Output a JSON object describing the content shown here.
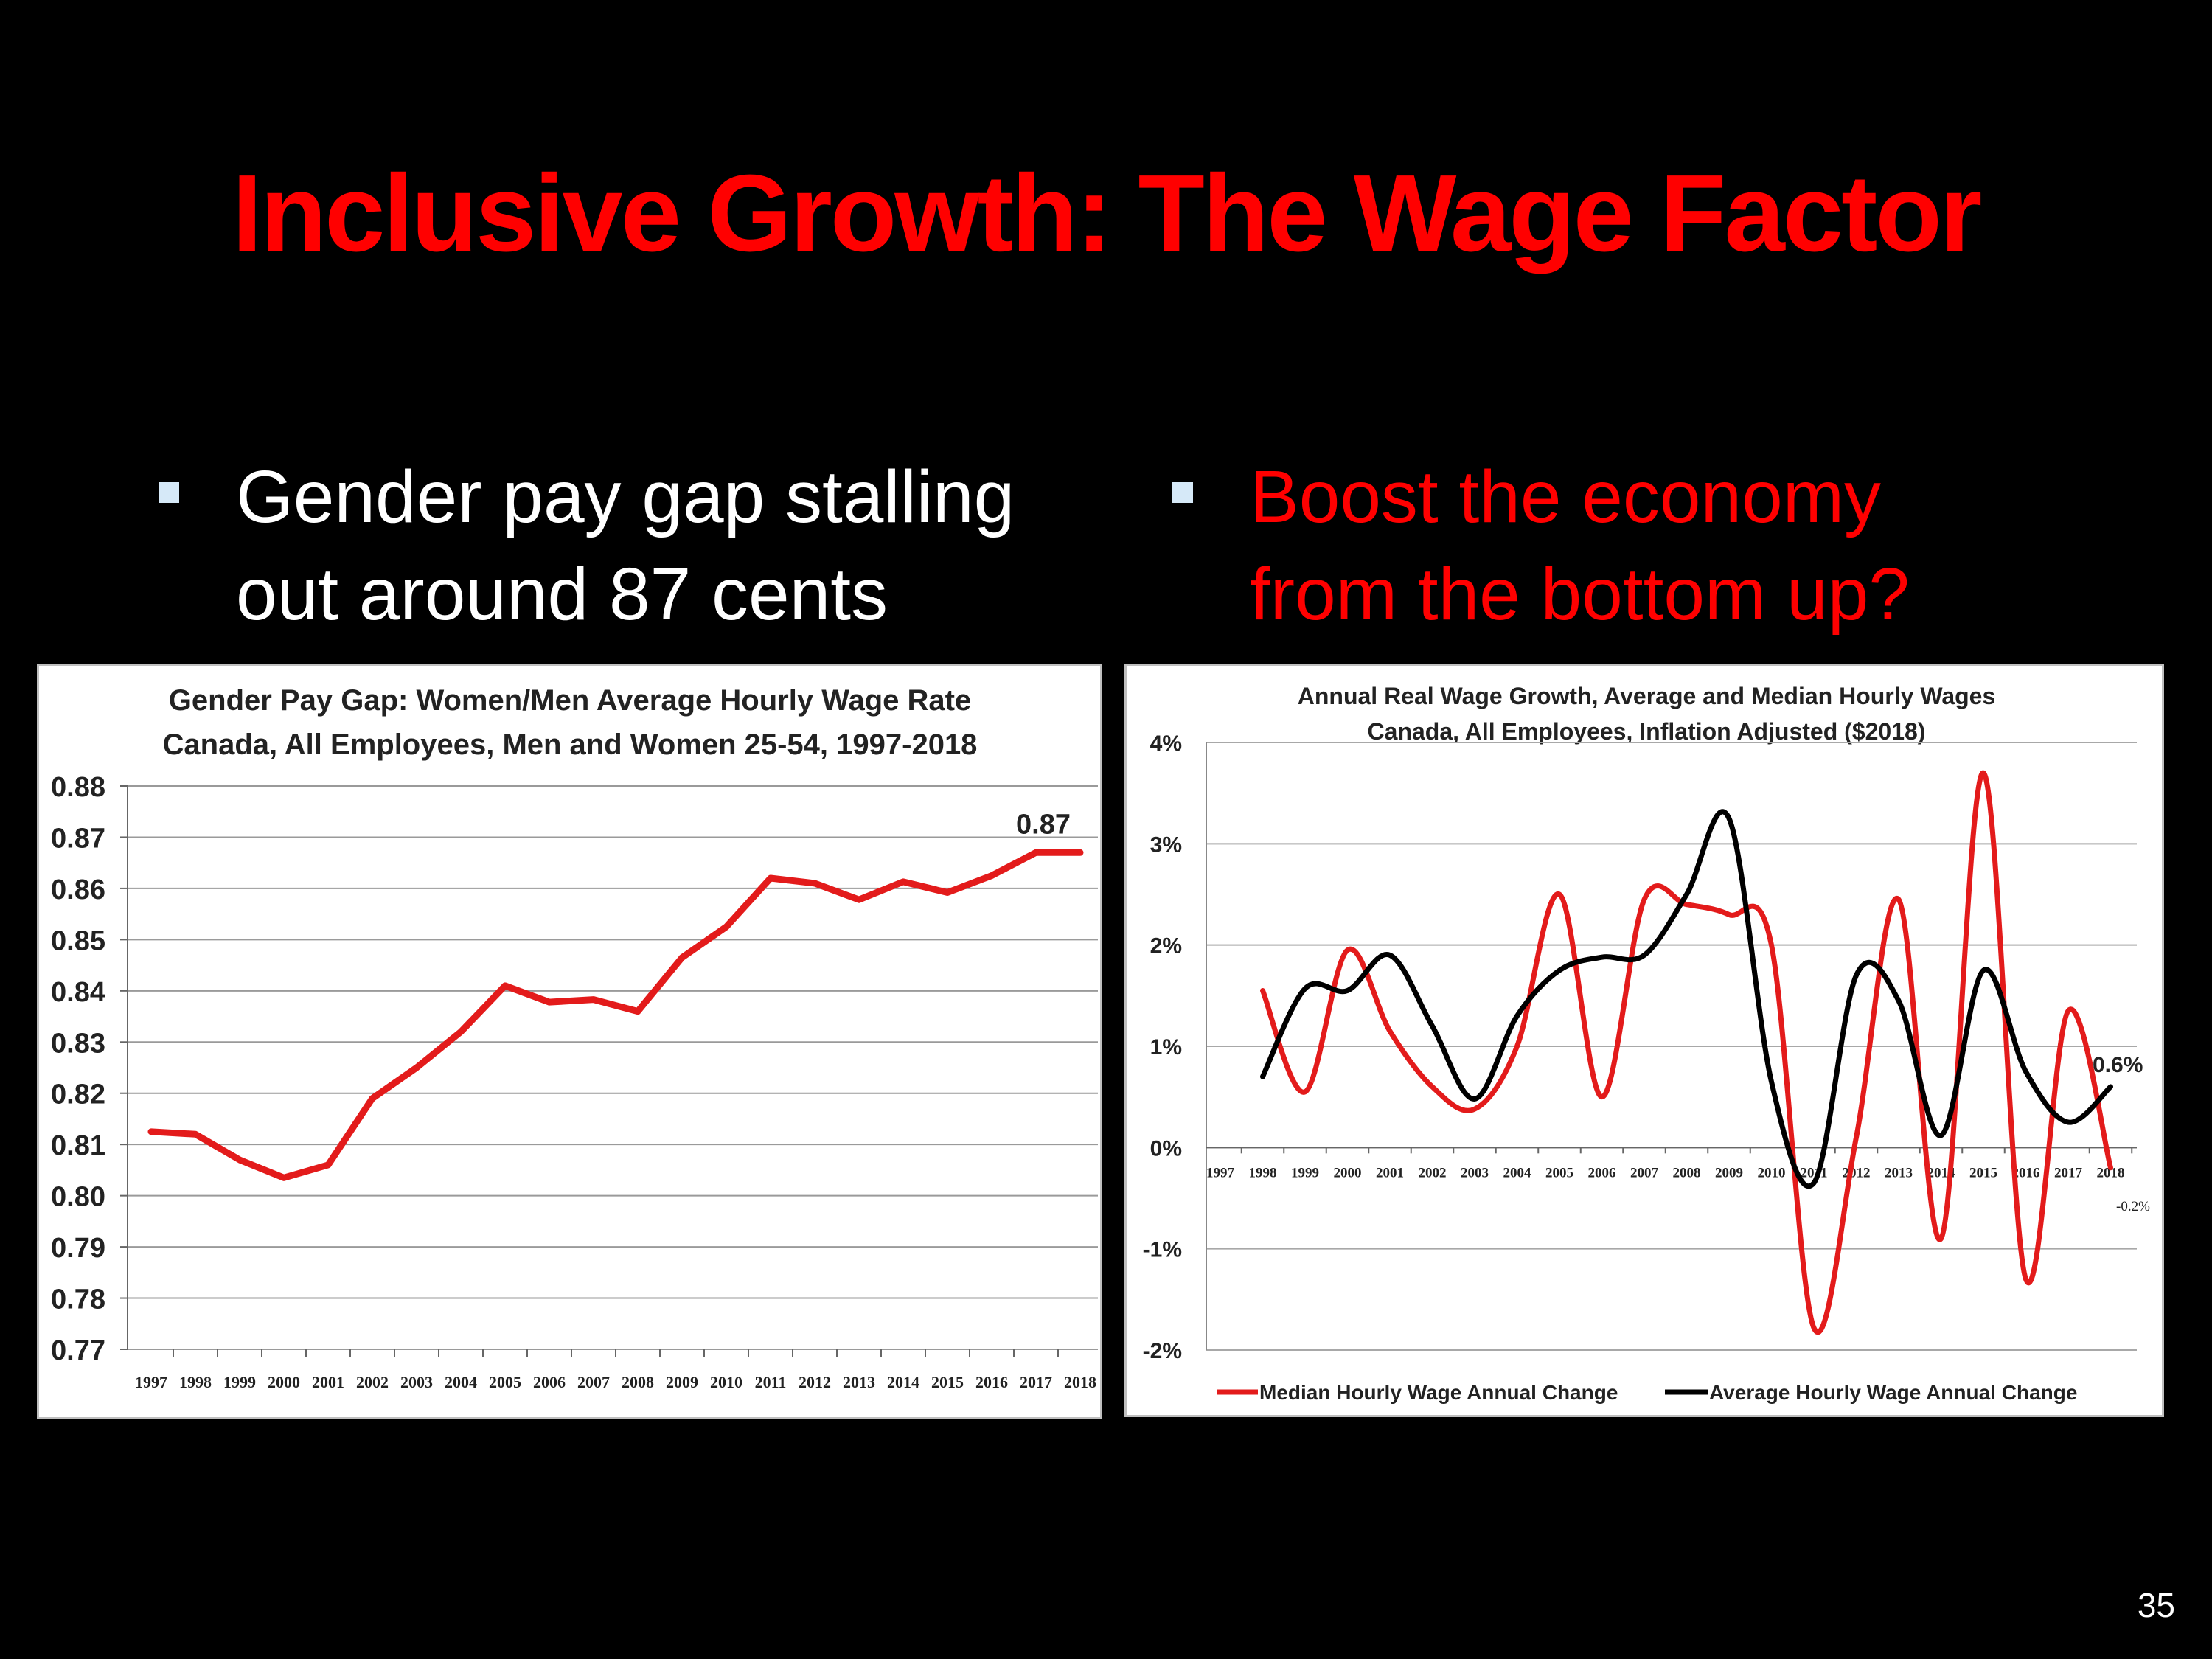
{
  "slide": {
    "title": "Inclusive Growth: The Wage Factor",
    "number": "35",
    "bullets": [
      {
        "line1": "Gender pay gap stalling",
        "line2": "out around 87 cents",
        "color": "#ffffff"
      },
      {
        "line1": "Boost the economy",
        "line2": "from the bottom up?",
        "color": "#ff0000"
      }
    ]
  },
  "chart_data": [
    {
      "type": "line",
      "title": "Gender Pay Gap: Women/Men Average Hourly Wage Rate",
      "subtitle": "Canada, All Employees, Men and Women 25-54, 1997-2018",
      "categories": [
        "1997",
        "1998",
        "1999",
        "2000",
        "2001",
        "2002",
        "2003",
        "2004",
        "2005",
        "2006",
        "2007",
        "2008",
        "2009",
        "2010",
        "2011",
        "2012",
        "2013",
        "2014",
        "2015",
        "2016",
        "2017",
        "2018"
      ],
      "series": [
        {
          "values": [
            0.8125,
            0.812,
            0.807,
            0.8035,
            0.806,
            0.819,
            0.825,
            0.832,
            0.841,
            0.8378,
            0.8383,
            0.836,
            0.8465,
            0.8525,
            0.862,
            0.861,
            0.8578,
            0.8613,
            0.8592,
            0.8625,
            0.867,
            0.867
          ],
          "color": "#e31b1b"
        }
      ],
      "ylim": [
        0.77,
        0.88
      ],
      "yticks": [
        "0.88",
        "0.87",
        "0.86",
        "0.85",
        "0.84",
        "0.83",
        "0.82",
        "0.81",
        "0.80",
        "0.79",
        "0.78",
        "0.77"
      ],
      "annotation": "0.87",
      "grid": true,
      "legend": "none"
    },
    {
      "type": "line",
      "title": "Annual Real Wage Growth, Average and Median Hourly Wages",
      "subtitle": "Canada, All Employees, Inflation Adjusted ($2018)",
      "categories": [
        "1997",
        "1998",
        "1999",
        "2000",
        "2001",
        "2002",
        "2003",
        "2004",
        "2005",
        "2006",
        "2007",
        "2008",
        "2009",
        "2010",
        "2011",
        "2012",
        "2013",
        "2014",
        "2015",
        "2016",
        "2017",
        "2018"
      ],
      "series": [
        {
          "name": "Median Hourly Wage Annual Change",
          "color": "#e31b1b",
          "values": [
            null,
            1.55,
            0.55,
            1.95,
            1.15,
            0.6,
            0.38,
            1.0,
            2.5,
            0.5,
            2.45,
            2.4,
            2.3,
            2.0,
            -1.78,
            0.1,
            2.45,
            -0.9,
            3.7,
            -1.3,
            1.35,
            -0.2
          ]
        },
        {
          "name": "Average Hourly Wage Annual Change",
          "color": "#000000",
          "values": [
            null,
            0.7,
            1.57,
            1.55,
            1.9,
            1.2,
            0.48,
            1.3,
            1.75,
            1.88,
            1.9,
            2.5,
            3.25,
            0.65,
            -0.35,
            1.7,
            1.45,
            0.12,
            1.75,
            0.75,
            0.25,
            0.6
          ]
        }
      ],
      "ylim": [
        -2,
        4
      ],
      "yticks": [
        "4%",
        "3%",
        "2%",
        "1%",
        "0%",
        "-1%",
        "-2%"
      ],
      "annotations": [
        "0.6%",
        "-0.2%"
      ],
      "grid": true,
      "legend": "bottom"
    }
  ]
}
